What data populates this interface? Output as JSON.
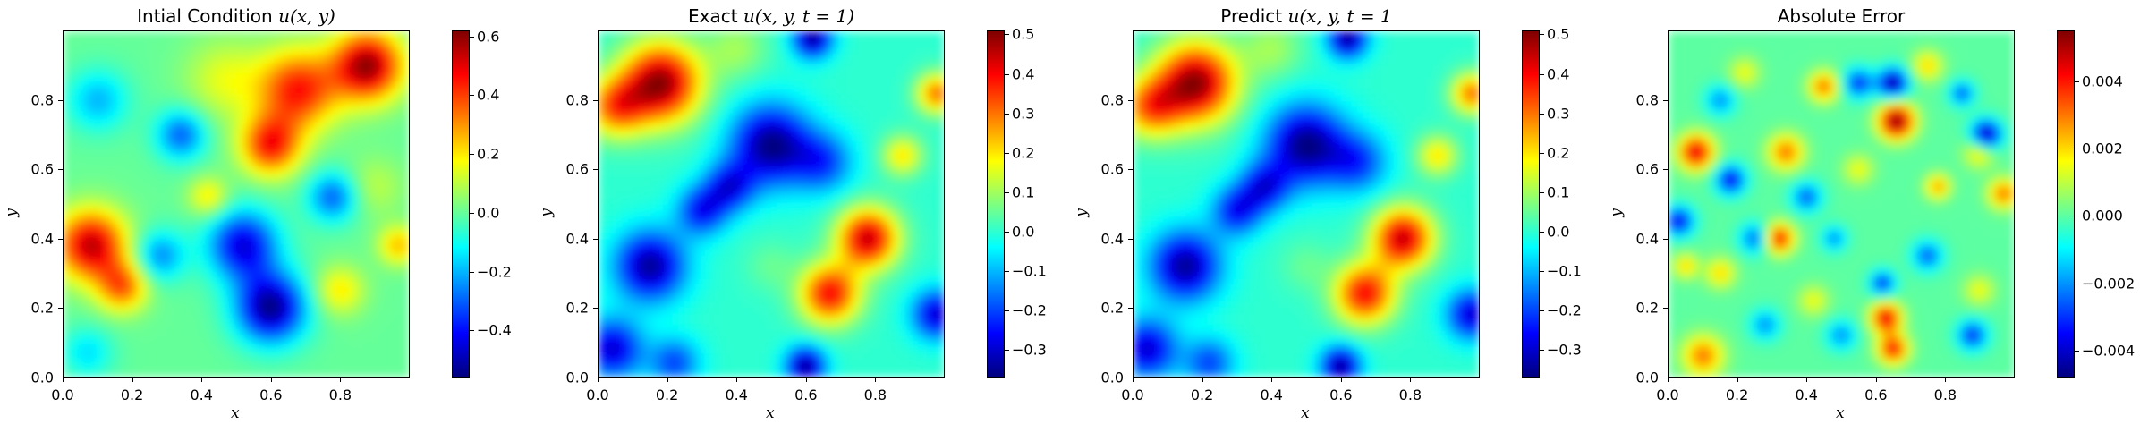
{
  "colormap": "jet",
  "jet_stops": [
    "#00007f",
    "#0000ff",
    "#007fff",
    "#00ffff",
    "#7fff7f",
    "#ffff00",
    "#ff7f00",
    "#ff0000",
    "#7f0000"
  ],
  "chart_data": [
    {
      "type": "heatmap",
      "title_plain": "Intial Condition ",
      "title_math": "u(x, y)",
      "xlabel": "x",
      "ylabel": "y",
      "xlim": [
        0,
        1
      ],
      "ylim": [
        0,
        1
      ],
      "x_ticks": [
        "0.0",
        "0.2",
        "0.4",
        "0.6",
        "0.8"
      ],
      "y_ticks": [
        "0.0",
        "0.2",
        "0.4",
        "0.6",
        "0.8"
      ],
      "colorbar": {
        "range": [
          -0.56,
          0.62
        ],
        "ticks": [
          -0.4,
          -0.2,
          0.0,
          0.2,
          0.4,
          0.6
        ],
        "tick_labels": [
          "−0.4",
          "−0.2",
          "0.0",
          "0.2",
          "0.4",
          "0.6"
        ]
      },
      "blobs": [
        {
          "x": 0.88,
          "y": 0.9,
          "v": 0.6,
          "s": 0.07
        },
        {
          "x": 0.68,
          "y": 0.83,
          "v": 0.45,
          "s": 0.08
        },
        {
          "x": 0.6,
          "y": 0.67,
          "v": 0.45,
          "s": 0.06
        },
        {
          "x": 0.08,
          "y": 0.38,
          "v": 0.55,
          "s": 0.07
        },
        {
          "x": 0.17,
          "y": 0.26,
          "v": 0.35,
          "s": 0.05
        },
        {
          "x": 0.47,
          "y": 0.86,
          "v": 0.15,
          "s": 0.08
        },
        {
          "x": 0.9,
          "y": 0.55,
          "v": 0.1,
          "s": 0.06
        },
        {
          "x": 0.8,
          "y": 0.25,
          "v": 0.2,
          "s": 0.05
        },
        {
          "x": 0.42,
          "y": 0.52,
          "v": 0.2,
          "s": 0.04
        },
        {
          "x": 0.97,
          "y": 0.38,
          "v": 0.25,
          "s": 0.04
        },
        {
          "x": 0.6,
          "y": 0.2,
          "v": -0.55,
          "s": 0.07
        },
        {
          "x": 0.52,
          "y": 0.38,
          "v": -0.45,
          "s": 0.07
        },
        {
          "x": 0.34,
          "y": 0.7,
          "v": -0.3,
          "s": 0.05
        },
        {
          "x": 0.78,
          "y": 0.52,
          "v": -0.3,
          "s": 0.05
        },
        {
          "x": 0.1,
          "y": 0.8,
          "v": -0.2,
          "s": 0.06
        },
        {
          "x": 0.28,
          "y": 0.35,
          "v": -0.25,
          "s": 0.05
        },
        {
          "x": 0.07,
          "y": 0.07,
          "v": -0.15,
          "s": 0.05
        }
      ]
    },
    {
      "type": "heatmap",
      "title_plain": "Exact ",
      "title_math": "u(x, y, t = 1)",
      "xlabel": "x",
      "ylabel": "y",
      "xlim": [
        0,
        1
      ],
      "ylim": [
        0,
        1
      ],
      "x_ticks": [
        "0.0",
        "0.2",
        "0.4",
        "0.6",
        "0.8"
      ],
      "y_ticks": [
        "0.0",
        "0.2",
        "0.4",
        "0.6",
        "0.8"
      ],
      "colorbar": {
        "range": [
          -0.37,
          0.51
        ],
        "ticks": [
          -0.3,
          -0.2,
          -0.1,
          0.0,
          0.1,
          0.2,
          0.3,
          0.4,
          0.5
        ],
        "tick_labels": [
          "−0.3",
          "−0.2",
          "−0.1",
          "0.0",
          "0.1",
          "0.2",
          "0.3",
          "0.4",
          "0.5"
        ]
      },
      "blobs": [
        {
          "x": 0.18,
          "y": 0.85,
          "v": 0.5,
          "s": 0.08
        },
        {
          "x": 0.05,
          "y": 0.78,
          "v": 0.3,
          "s": 0.06
        },
        {
          "x": 0.78,
          "y": 0.4,
          "v": 0.45,
          "s": 0.06
        },
        {
          "x": 0.67,
          "y": 0.24,
          "v": 0.4,
          "s": 0.06
        },
        {
          "x": 0.98,
          "y": 0.82,
          "v": 0.3,
          "s": 0.04
        },
        {
          "x": 0.88,
          "y": 0.64,
          "v": 0.2,
          "s": 0.04
        },
        {
          "x": 0.4,
          "y": 0.95,
          "v": 0.1,
          "s": 0.06
        },
        {
          "x": 0.5,
          "y": 0.67,
          "v": -0.37,
          "s": 0.08
        },
        {
          "x": 0.65,
          "y": 0.62,
          "v": -0.2,
          "s": 0.06
        },
        {
          "x": 0.38,
          "y": 0.55,
          "v": -0.25,
          "s": 0.05
        },
        {
          "x": 0.15,
          "y": 0.32,
          "v": -0.35,
          "s": 0.07
        },
        {
          "x": 0.3,
          "y": 0.48,
          "v": -0.25,
          "s": 0.05
        },
        {
          "x": 0.6,
          "y": 0.03,
          "v": -0.35,
          "s": 0.04
        },
        {
          "x": 0.04,
          "y": 0.08,
          "v": -0.3,
          "s": 0.06
        },
        {
          "x": 0.22,
          "y": 0.04,
          "v": -0.2,
          "s": 0.05
        },
        {
          "x": 0.98,
          "y": 0.18,
          "v": -0.3,
          "s": 0.05
        },
        {
          "x": 0.62,
          "y": 0.98,
          "v": -0.35,
          "s": 0.04
        },
        {
          "x": 0.5,
          "y": 0.32,
          "v": 0.05,
          "s": 0.05
        }
      ]
    },
    {
      "type": "heatmap",
      "title_plain": "Predict ",
      "title_math": "u(x, y, t = 1",
      "xlabel": "x",
      "ylabel": "y",
      "xlim": [
        0,
        1
      ],
      "ylim": [
        0,
        1
      ],
      "x_ticks": [
        "0.0",
        "0.2",
        "0.4",
        "0.6",
        "0.8"
      ],
      "y_ticks": [
        "0.0",
        "0.2",
        "0.4",
        "0.6",
        "0.8"
      ],
      "colorbar": {
        "range": [
          -0.37,
          0.51
        ],
        "ticks": [
          -0.3,
          -0.2,
          -0.1,
          0.0,
          0.1,
          0.2,
          0.3,
          0.4,
          0.5
        ],
        "tick_labels": [
          "−0.3",
          "−0.2",
          "−0.1",
          "0.0",
          "0.1",
          "0.2",
          "0.3",
          "0.4",
          "0.5"
        ]
      },
      "blobs": [
        {
          "x": 0.18,
          "y": 0.85,
          "v": 0.5,
          "s": 0.08
        },
        {
          "x": 0.05,
          "y": 0.78,
          "v": 0.3,
          "s": 0.06
        },
        {
          "x": 0.78,
          "y": 0.4,
          "v": 0.45,
          "s": 0.06
        },
        {
          "x": 0.67,
          "y": 0.24,
          "v": 0.4,
          "s": 0.06
        },
        {
          "x": 0.98,
          "y": 0.82,
          "v": 0.3,
          "s": 0.04
        },
        {
          "x": 0.88,
          "y": 0.64,
          "v": 0.2,
          "s": 0.04
        },
        {
          "x": 0.4,
          "y": 0.95,
          "v": 0.1,
          "s": 0.06
        },
        {
          "x": 0.5,
          "y": 0.67,
          "v": -0.37,
          "s": 0.08
        },
        {
          "x": 0.65,
          "y": 0.62,
          "v": -0.2,
          "s": 0.06
        },
        {
          "x": 0.38,
          "y": 0.55,
          "v": -0.25,
          "s": 0.05
        },
        {
          "x": 0.15,
          "y": 0.32,
          "v": -0.35,
          "s": 0.07
        },
        {
          "x": 0.3,
          "y": 0.48,
          "v": -0.25,
          "s": 0.05
        },
        {
          "x": 0.6,
          "y": 0.03,
          "v": -0.35,
          "s": 0.04
        },
        {
          "x": 0.04,
          "y": 0.08,
          "v": -0.3,
          "s": 0.06
        },
        {
          "x": 0.22,
          "y": 0.04,
          "v": -0.2,
          "s": 0.05
        },
        {
          "x": 0.98,
          "y": 0.18,
          "v": -0.3,
          "s": 0.05
        },
        {
          "x": 0.62,
          "y": 0.98,
          "v": -0.35,
          "s": 0.04
        },
        {
          "x": 0.5,
          "y": 0.32,
          "v": 0.05,
          "s": 0.05
        }
      ]
    },
    {
      "type": "heatmap",
      "title_plain": "Absolute Error",
      "title_math": "",
      "xlabel": "x",
      "ylabel": "y",
      "xlim": [
        0,
        1
      ],
      "ylim": [
        0,
        1
      ],
      "x_ticks": [
        "0.0",
        "0.2",
        "0.4",
        "0.6",
        "0.8"
      ],
      "y_ticks": [
        "0.0",
        "0.2",
        "0.4",
        "0.6",
        "0.8"
      ],
      "colorbar": {
        "range": [
          -0.0048,
          0.0055
        ],
        "ticks": [
          -0.004,
          -0.002,
          0.0,
          0.002,
          0.004
        ],
        "tick_labels": [
          "−0.004",
          "−0.002",
          "0.000",
          "0.002",
          "0.004"
        ]
      },
      "blobs": [
        {
          "x": 0.66,
          "y": 0.74,
          "v": 0.0055,
          "s": 0.035
        },
        {
          "x": 0.65,
          "y": 0.85,
          "v": -0.0045,
          "s": 0.03
        },
        {
          "x": 0.63,
          "y": 0.17,
          "v": 0.0045,
          "s": 0.03
        },
        {
          "x": 0.65,
          "y": 0.08,
          "v": 0.004,
          "s": 0.03
        },
        {
          "x": 0.08,
          "y": 0.65,
          "v": 0.0045,
          "s": 0.035
        },
        {
          "x": 0.1,
          "y": 0.06,
          "v": 0.003,
          "s": 0.04
        },
        {
          "x": 0.32,
          "y": 0.4,
          "v": 0.004,
          "s": 0.03
        },
        {
          "x": 0.34,
          "y": 0.65,
          "v": 0.003,
          "s": 0.035
        },
        {
          "x": 0.45,
          "y": 0.84,
          "v": 0.003,
          "s": 0.03
        },
        {
          "x": 0.75,
          "y": 0.9,
          "v": 0.002,
          "s": 0.03
        },
        {
          "x": 0.9,
          "y": 0.65,
          "v": 0.002,
          "s": 0.03
        },
        {
          "x": 0.15,
          "y": 0.3,
          "v": 0.002,
          "s": 0.03
        },
        {
          "x": 0.05,
          "y": 0.32,
          "v": 0.002,
          "s": 0.025
        },
        {
          "x": 0.97,
          "y": 0.53,
          "v": 0.003,
          "s": 0.03
        },
        {
          "x": 0.9,
          "y": 0.25,
          "v": 0.0015,
          "s": 0.03
        },
        {
          "x": 0.78,
          "y": 0.55,
          "v": 0.0025,
          "s": 0.025
        },
        {
          "x": 0.55,
          "y": 0.6,
          "v": 0.0015,
          "s": 0.03
        },
        {
          "x": 0.22,
          "y": 0.88,
          "v": 0.0015,
          "s": 0.03
        },
        {
          "x": 0.42,
          "y": 0.22,
          "v": 0.0015,
          "s": 0.03
        },
        {
          "x": 0.92,
          "y": 0.7,
          "v": -0.0045,
          "s": 0.03
        },
        {
          "x": 0.03,
          "y": 0.45,
          "v": -0.0035,
          "s": 0.03
        },
        {
          "x": 0.18,
          "y": 0.57,
          "v": -0.0035,
          "s": 0.03
        },
        {
          "x": 0.85,
          "y": 0.82,
          "v": -0.0025,
          "s": 0.025
        },
        {
          "x": 0.55,
          "y": 0.85,
          "v": -0.003,
          "s": 0.03
        },
        {
          "x": 0.62,
          "y": 0.27,
          "v": -0.003,
          "s": 0.025
        },
        {
          "x": 0.4,
          "y": 0.52,
          "v": -0.0025,
          "s": 0.03
        },
        {
          "x": 0.88,
          "y": 0.12,
          "v": -0.003,
          "s": 0.03
        },
        {
          "x": 0.25,
          "y": 0.4,
          "v": -0.0025,
          "s": 0.03
        },
        {
          "x": 0.75,
          "y": 0.35,
          "v": -0.0025,
          "s": 0.03
        },
        {
          "x": 0.28,
          "y": 0.15,
          "v": -0.002,
          "s": 0.03
        },
        {
          "x": 0.48,
          "y": 0.4,
          "v": -0.002,
          "s": 0.025
        },
        {
          "x": 0.15,
          "y": 0.8,
          "v": -0.002,
          "s": 0.03
        },
        {
          "x": 0.5,
          "y": 0.12,
          "v": -0.002,
          "s": 0.03
        }
      ]
    }
  ]
}
